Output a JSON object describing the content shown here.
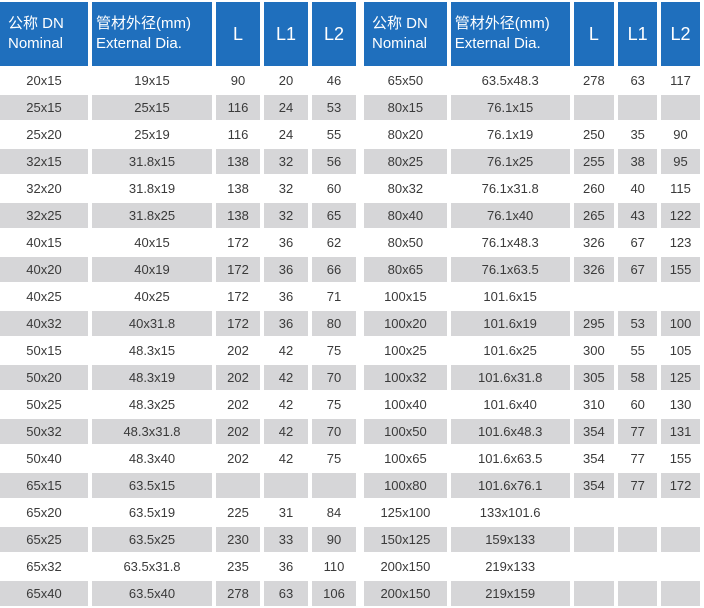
{
  "headers": {
    "nominal_cn": "公称 DN",
    "nominal_en": "Nominal",
    "pipe_cn": "管材外径(mm)",
    "pipe_en": "External Dia.",
    "l": "L",
    "l1": "L1",
    "l2": "L2"
  },
  "colors": {
    "header_bg": "#1f6fbd",
    "header_text": "#ffffff",
    "row_shade": "#d6d6d8",
    "text": "#3a3a3a"
  },
  "left_rows": [
    {
      "nominal": "20x15",
      "pipe": "19x15",
      "l": "90",
      "l1": "20",
      "l2": "46"
    },
    {
      "nominal": "25x15",
      "pipe": "25x15",
      "l": "116",
      "l1": "24",
      "l2": "53"
    },
    {
      "nominal": "25x20",
      "pipe": "25x19",
      "l": "116",
      "l1": "24",
      "l2": "55"
    },
    {
      "nominal": "32x15",
      "pipe": "31.8x15",
      "l": "138",
      "l1": "32",
      "l2": "56"
    },
    {
      "nominal": "32x20",
      "pipe": "31.8x19",
      "l": "138",
      "l1": "32",
      "l2": "60"
    },
    {
      "nominal": "32x25",
      "pipe": "31.8x25",
      "l": "138",
      "l1": "32",
      "l2": "65"
    },
    {
      "nominal": "40x15",
      "pipe": "40x15",
      "l": "172",
      "l1": "36",
      "l2": "62"
    },
    {
      "nominal": "40x20",
      "pipe": "40x19",
      "l": "172",
      "l1": "36",
      "l2": "66"
    },
    {
      "nominal": "40x25",
      "pipe": "40x25",
      "l": "172",
      "l1": "36",
      "l2": "71"
    },
    {
      "nominal": "40x32",
      "pipe": "40x31.8",
      "l": "172",
      "l1": "36",
      "l2": "80"
    },
    {
      "nominal": "50x15",
      "pipe": "48.3x15",
      "l": "202",
      "l1": "42",
      "l2": "75"
    },
    {
      "nominal": "50x20",
      "pipe": "48.3x19",
      "l": "202",
      "l1": "42",
      "l2": "70"
    },
    {
      "nominal": "50x25",
      "pipe": "48.3x25",
      "l": "202",
      "l1": "42",
      "l2": "75"
    },
    {
      "nominal": "50x32",
      "pipe": "48.3x31.8",
      "l": "202",
      "l1": "42",
      "l2": "70"
    },
    {
      "nominal": "50x40",
      "pipe": "48.3x40",
      "l": "202",
      "l1": "42",
      "l2": "75"
    },
    {
      "nominal": "65x15",
      "pipe": "63.5x15",
      "l": "",
      "l1": "",
      "l2": ""
    },
    {
      "nominal": "65x20",
      "pipe": "63.5x19",
      "l": "225",
      "l1": "31",
      "l2": "84"
    },
    {
      "nominal": "65x25",
      "pipe": "63.5x25",
      "l": "230",
      "l1": "33",
      "l2": "90"
    },
    {
      "nominal": "65x32",
      "pipe": "63.5x31.8",
      "l": "235",
      "l1": "36",
      "l2": "110"
    },
    {
      "nominal": "65x40",
      "pipe": "63.5x40",
      "l": "278",
      "l1": "63",
      "l2": "106"
    }
  ],
  "right_rows": [
    {
      "nominal": "65x50",
      "pipe": "63.5x48.3",
      "l": "278",
      "l1": "63",
      "l2": "117"
    },
    {
      "nominal": "80x15",
      "pipe": "76.1x15",
      "l": "",
      "l1": "",
      "l2": ""
    },
    {
      "nominal": "80x20",
      "pipe": "76.1x19",
      "l": "250",
      "l1": "35",
      "l2": "90"
    },
    {
      "nominal": "80x25",
      "pipe": "76.1x25",
      "l": "255",
      "l1": "38",
      "l2": "95"
    },
    {
      "nominal": "80x32",
      "pipe": "76.1x31.8",
      "l": "260",
      "l1": "40",
      "l2": "115"
    },
    {
      "nominal": "80x40",
      "pipe": "76.1x40",
      "l": "265",
      "l1": "43",
      "l2": "122"
    },
    {
      "nominal": "80x50",
      "pipe": "76.1x48.3",
      "l": "326",
      "l1": "67",
      "l2": "123"
    },
    {
      "nominal": "80x65",
      "pipe": "76.1x63.5",
      "l": "326",
      "l1": "67",
      "l2": "155"
    },
    {
      "nominal": "100x15",
      "pipe": "101.6x15",
      "l": "",
      "l1": "",
      "l2": ""
    },
    {
      "nominal": "100x20",
      "pipe": "101.6x19",
      "l": "295",
      "l1": "53",
      "l2": "100"
    },
    {
      "nominal": "100x25",
      "pipe": "101.6x25",
      "l": "300",
      "l1": "55",
      "l2": "105"
    },
    {
      "nominal": "100x32",
      "pipe": "101.6x31.8",
      "l": "305",
      "l1": "58",
      "l2": "125"
    },
    {
      "nominal": "100x40",
      "pipe": "101.6x40",
      "l": "310",
      "l1": "60",
      "l2": "130"
    },
    {
      "nominal": "100x50",
      "pipe": "101.6x48.3",
      "l": "354",
      "l1": "77",
      "l2": "131"
    },
    {
      "nominal": "100x65",
      "pipe": "101.6x63.5",
      "l": "354",
      "l1": "77",
      "l2": "155"
    },
    {
      "nominal": "100x80",
      "pipe": "101.6x76.1",
      "l": "354",
      "l1": "77",
      "l2": "172"
    },
    {
      "nominal": "125x100",
      "pipe": "133x101.6",
      "l": "",
      "l1": "",
      "l2": ""
    },
    {
      "nominal": "150x125",
      "pipe": "159x133",
      "l": "",
      "l1": "",
      "l2": ""
    },
    {
      "nominal": "200x150",
      "pipe": "219x133",
      "l": "",
      "l1": "",
      "l2": ""
    },
    {
      "nominal": "200x150",
      "pipe": "219x159",
      "l": "",
      "l1": "",
      "l2": ""
    }
  ]
}
